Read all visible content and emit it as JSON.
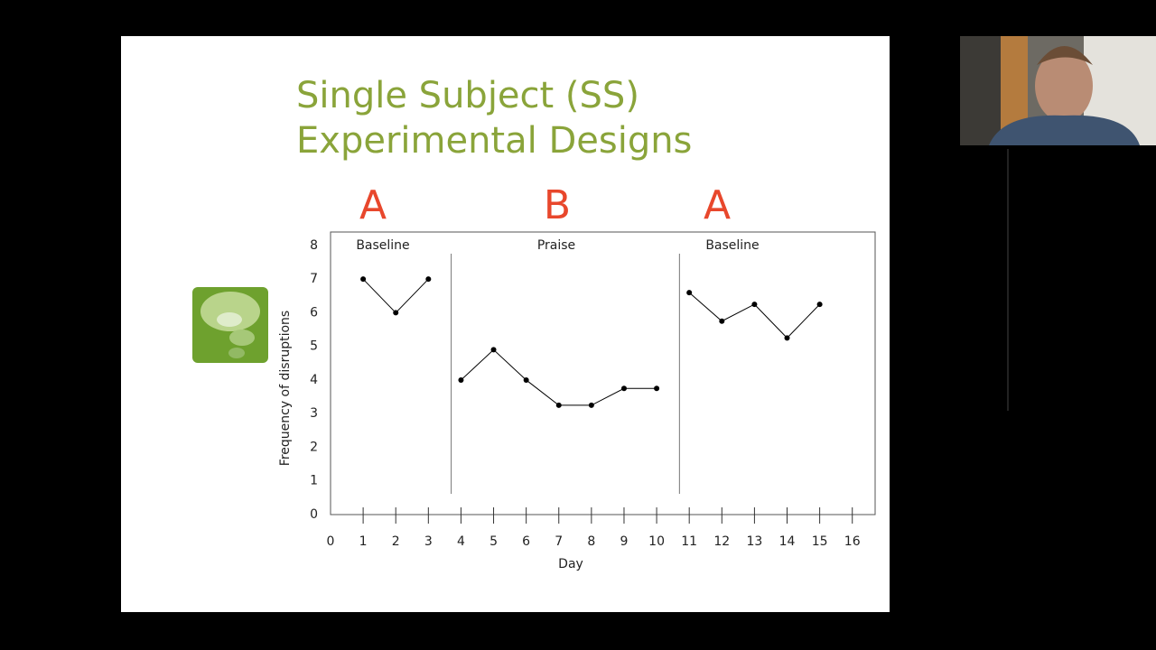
{
  "slide": {
    "title_lines": [
      "Single Subject (SS)",
      "Experimental Designs"
    ]
  },
  "chart_data": {
    "type": "line",
    "xlabel": "Day",
    "ylabel": "Frequency of disruptions",
    "xlim": [
      0,
      16.7
    ],
    "ylim": [
      0,
      8.4
    ],
    "xticks": [
      0,
      1,
      2,
      3,
      4,
      5,
      6,
      7,
      8,
      9,
      10,
      11,
      12,
      13,
      14,
      15,
      16
    ],
    "yticks": [
      0,
      1,
      2,
      3,
      4,
      5,
      6,
      7,
      8
    ],
    "phases": [
      {
        "letter": "A",
        "label": "Baseline"
      },
      {
        "letter": "B",
        "label": "Praise"
      },
      {
        "letter": "A",
        "label": "Baseline"
      }
    ],
    "phase_lines": [
      3.7,
      10.7
    ],
    "series": [
      {
        "color": "#000000",
        "x": [
          1,
          2,
          3
        ],
        "values": [
          7,
          6,
          7
        ]
      },
      {
        "color": "#000000",
        "x": [
          4,
          5,
          6,
          7,
          8,
          9,
          10
        ],
        "values": [
          4,
          4.9,
          4,
          3.25,
          3.25,
          3.75,
          3.75
        ]
      },
      {
        "color": "#000000",
        "x": [
          11,
          12,
          13,
          14,
          15
        ],
        "values": [
          6.6,
          5.75,
          6.25,
          5.25,
          6.25
        ]
      }
    ]
  }
}
